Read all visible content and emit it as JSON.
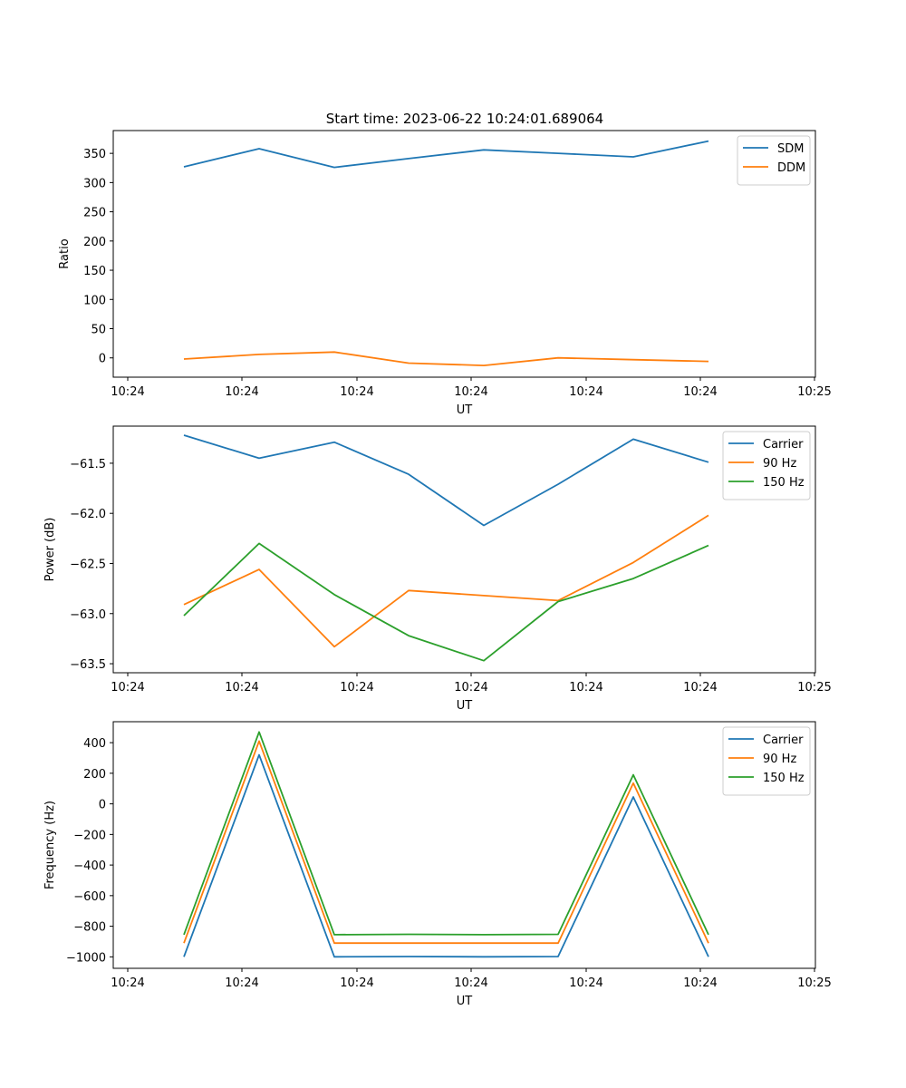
{
  "figure": {
    "title": "Start time: 2023-06-22 10:24:01.689064"
  },
  "chart_data": [
    {
      "type": "line",
      "title": "Start time: 2023-06-22 10:24:01.689064",
      "xlabel": "UT",
      "ylabel": "Ratio",
      "x_tick_labels": [
        "10:24",
        "10:24",
        "10:24",
        "10:24",
        "10:24",
        "10:24",
        "10:24"
      ],
      "y_ticks": [
        0,
        50,
        100,
        150,
        200,
        250,
        300,
        350
      ],
      "y_tick_labels": [
        "0",
        "50",
        "100",
        "150",
        "200",
        "250",
        "300",
        "350"
      ],
      "ylim": [
        -33,
        389
      ],
      "x_points": 8,
      "legend_position": "upper right",
      "grid": false,
      "series": [
        {
          "name": "SDM",
          "color": "#1f77b4",
          "values": [
            327,
            358,
            326,
            341,
            356,
            350,
            344,
            371
          ]
        },
        {
          "name": "DDM",
          "color": "#ff7f0e",
          "values": [
            -2,
            6,
            10,
            -9,
            -13,
            0,
            -3,
            -6
          ]
        }
      ]
    },
    {
      "type": "line",
      "xlabel": "UT",
      "ylabel": "Power (dB)",
      "x_tick_labels": [
        "10:24",
        "10:24",
        "10:24",
        "10:24",
        "10:24",
        "10:24",
        "10:24"
      ],
      "y_ticks": [
        -63.5,
        -63.0,
        -62.5,
        -62.0,
        -61.5
      ],
      "y_tick_labels": [
        "−63.5",
        "−63.0",
        "−62.5",
        "−62.0",
        "−61.5"
      ],
      "ylim": [
        -63.59,
        -61.13
      ],
      "x_points": 8,
      "legend_position": "upper right",
      "grid": false,
      "series": [
        {
          "name": "Carrier",
          "color": "#1f77b4",
          "values": [
            -61.22,
            -61.45,
            -61.29,
            -61.61,
            -62.12,
            -61.71,
            -61.26,
            -61.49
          ]
        },
        {
          "name": "90 Hz",
          "color": "#ff7f0e",
          "values": [
            -62.91,
            -62.56,
            -63.33,
            -62.77,
            -62.82,
            -62.87,
            -62.49,
            -62.02
          ]
        },
        {
          "name": "150 Hz",
          "color": "#2ca02c",
          "values": [
            -63.02,
            -62.3,
            -62.81,
            -63.22,
            -63.47,
            -62.88,
            -62.65,
            -62.32
          ]
        }
      ]
    },
    {
      "type": "line",
      "xlabel": "UT",
      "ylabel": "Frequency (Hz)",
      "x_tick_labels": [
        "10:24",
        "10:24",
        "10:24",
        "10:24",
        "10:24",
        "10:24",
        "10:24"
      ],
      "y_ticks": [
        -1000,
        -800,
        -600,
        -400,
        -200,
        0,
        200,
        400
      ],
      "y_tick_labels": [
        "−1000",
        "−800",
        "−600",
        "−400",
        "−200",
        "0",
        "200",
        "400"
      ],
      "ylim": [
        -1075,
        537
      ],
      "x_points": 8,
      "legend_position": "upper right",
      "grid": false,
      "series": [
        {
          "name": "Carrier",
          "color": "#1f77b4",
          "values": [
            -1000,
            320,
            -1000,
            -998,
            -1000,
            -998,
            45,
            -1000
          ]
        },
        {
          "name": "90 Hz",
          "color": "#ff7f0e",
          "values": [
            -910,
            410,
            -910,
            -910,
            -910,
            -910,
            135,
            -910
          ]
        },
        {
          "name": "150 Hz",
          "color": "#2ca02c",
          "values": [
            -855,
            470,
            -855,
            -853,
            -855,
            -853,
            190,
            -855
          ]
        }
      ]
    }
  ],
  "x_axis_last_tick_label": "10:25"
}
